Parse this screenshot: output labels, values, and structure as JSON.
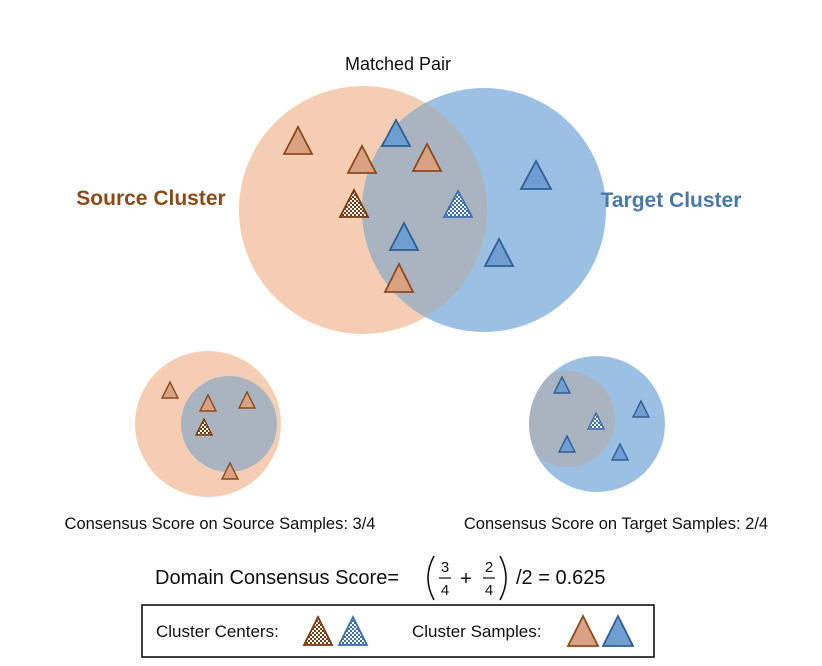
{
  "title": "Matched Pair",
  "source_label": "Source Cluster",
  "target_label": "Target Cluster",
  "source_score_text": "Consensus Score on Source Samples: 3/4",
  "target_score_text": "Consensus Score on Target Samples: 2/4",
  "formula": {
    "prefix": "Domain Consensus Score=",
    "frac1_num": "3",
    "frac1_den": "4",
    "plus": "+",
    "frac2_num": "2",
    "frac2_den": "4",
    "suffix": "/2 = 0.625"
  },
  "legend": {
    "centers_label": "Cluster Centers:",
    "samples_label": "Cluster Samples:"
  },
  "colors": {
    "source_fill": "#f5cdb3",
    "target_fill": "#9cc0e4",
    "overlap_fill": "#a9b4c0",
    "source_text": "#8b4a1a",
    "target_text": "#4a78aa",
    "source_tri_fill": "#d9a282",
    "source_tri_stroke": "#8c4a1d",
    "target_tri_fill": "#6f9ed2",
    "target_tri_stroke": "#2f5f95"
  }
}
